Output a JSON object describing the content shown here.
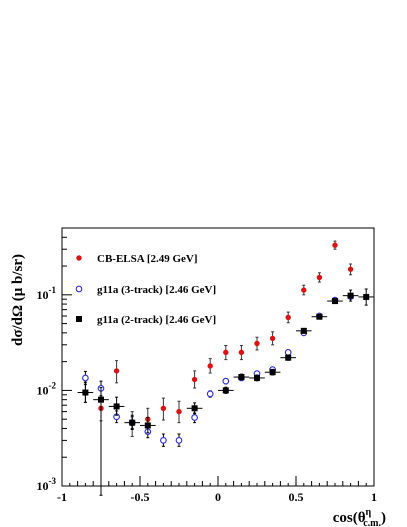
{
  "chart_data": {
    "type": "scatter",
    "title": "",
    "xlabel": "cos(θ",
    "xlabel_sup": "η",
    "xlabel_sub": "c.m.",
    "xlabel_close": ")",
    "ylabel": "dσ/dΩ (μ b/sr)",
    "xlim": [
      -1,
      1
    ],
    "ylim": [
      0.001,
      0.5
    ],
    "yscale": "log",
    "grid": false,
    "legend_position": "top-left",
    "x_ticks": [
      {
        "value": -1,
        "label": "-1"
      },
      {
        "value": -0.5,
        "label": "-0.5"
      },
      {
        "value": 0,
        "label": "0"
      },
      {
        "value": 0.5,
        "label": "0.5"
      },
      {
        "value": 1,
        "label": "1"
      }
    ],
    "y_ticks": [
      {
        "value": 0.001,
        "base": "10",
        "exp": "-3"
      },
      {
        "value": 0.01,
        "base": "10",
        "exp": "-2"
      },
      {
        "value": 0.1,
        "base": "10",
        "exp": "-1"
      }
    ],
    "series": [
      {
        "name": "CB-ELSA [2.49 GeV]",
        "marker": "filled-circle",
        "color": "#dd1111",
        "x_err": 0,
        "points": [
          {
            "x": -0.85,
            "y": 0.0095,
            "yerr": [
              0.0075,
              0.012
            ]
          },
          {
            "x": -0.75,
            "y": 0.0065,
            "yerr": [
              0.0048,
              0.0085
            ]
          },
          {
            "x": -0.65,
            "y": 0.016,
            "yerr": [
              0.012,
              0.0205
            ]
          },
          {
            "x": -0.55,
            "y": 0.0045,
            "yerr": [
              0.0033,
              0.006
            ]
          },
          {
            "x": -0.45,
            "y": 0.005,
            "yerr": [
              0.0037,
              0.0065
            ]
          },
          {
            "x": -0.35,
            "y": 0.0065,
            "yerr": [
              0.0049,
              0.0083
            ]
          },
          {
            "x": -0.25,
            "y": 0.006,
            "yerr": [
              0.0046,
              0.0077
            ]
          },
          {
            "x": -0.15,
            "y": 0.013,
            "yerr": [
              0.0106,
              0.016
            ]
          },
          {
            "x": -0.05,
            "y": 0.018,
            "yerr": [
              0.0152,
              0.0215
            ]
          },
          {
            "x": 0.05,
            "y": 0.025,
            "yerr": [
              0.021,
              0.0295
            ]
          },
          {
            "x": 0.15,
            "y": 0.025,
            "yerr": [
              0.021,
              0.0295
            ]
          },
          {
            "x": 0.25,
            "y": 0.031,
            "yerr": [
              0.0265,
              0.036
            ]
          },
          {
            "x": 0.35,
            "y": 0.035,
            "yerr": [
              0.03,
              0.041
            ]
          },
          {
            "x": 0.45,
            "y": 0.058,
            "yerr": [
              0.051,
              0.066
            ]
          },
          {
            "x": 0.55,
            "y": 0.112,
            "yerr": [
              0.1,
              0.126
            ]
          },
          {
            "x": 0.65,
            "y": 0.152,
            "yerr": [
              0.136,
              0.17
            ]
          },
          {
            "x": 0.75,
            "y": 0.33,
            "yerr": [
              0.3,
              0.365
            ]
          },
          {
            "x": 0.85,
            "y": 0.185,
            "yerr": [
              0.162,
              0.21
            ]
          }
        ]
      },
      {
        "name": "g11a (3-track) [2.46 GeV]",
        "marker": "open-circle",
        "color": "#2a2adf",
        "x_err": 0,
        "points": [
          {
            "x": -0.85,
            "y": 0.0135,
            "yerr": [
              0.0115,
              0.0158
            ]
          },
          {
            "x": -0.75,
            "y": 0.0105,
            "yerr": [
              0.0088,
              0.0125
            ]
          },
          {
            "x": -0.65,
            "y": 0.0053,
            "yerr": [
              0.0046,
              0.0061
            ]
          },
          {
            "x": -0.55,
            "y": 0.0046,
            "yerr": [
              0.004,
              0.0053
            ]
          },
          {
            "x": -0.45,
            "y": 0.0037,
            "yerr": [
              0.0032,
              0.0043
            ]
          },
          {
            "x": -0.35,
            "y": 0.003,
            "yerr": [
              0.0026,
              0.0035
            ]
          },
          {
            "x": -0.25,
            "y": 0.003,
            "yerr": [
              0.0026,
              0.0035
            ]
          },
          {
            "x": -0.15,
            "y": 0.0052,
            "yerr": [
              0.0046,
              0.0058
            ]
          },
          {
            "x": -0.05,
            "y": 0.0092,
            "yerr": [
              0.0085,
              0.0099
            ]
          },
          {
            "x": 0.05,
            "y": 0.0125,
            "yerr": [
              0.0117,
              0.0133
            ]
          },
          {
            "x": 0.15,
            "y": 0.0135,
            "yerr": [
              0.0127,
              0.0143
            ]
          },
          {
            "x": 0.25,
            "y": 0.015,
            "yerr": [
              0.0141,
              0.0159
            ]
          },
          {
            "x": 0.35,
            "y": 0.0165,
            "yerr": [
              0.0156,
              0.0175
            ]
          },
          {
            "x": 0.45,
            "y": 0.025,
            "yerr": [
              0.0237,
              0.0263
            ]
          },
          {
            "x": 0.55,
            "y": 0.04,
            "yerr": [
              0.038,
              0.042
            ]
          },
          {
            "x": 0.65,
            "y": 0.06,
            "yerr": [
              0.057,
              0.063
            ]
          },
          {
            "x": 0.75,
            "y": 0.088,
            "yerr": [
              0.084,
              0.092
            ]
          },
          {
            "x": 0.85,
            "y": 0.096,
            "yerr": [
              0.091,
              0.101
            ]
          }
        ]
      },
      {
        "name": "g11a (2-track) [2.46 GeV]",
        "marker": "filled-square",
        "color": "#000000",
        "x_err": 0.05,
        "points": [
          {
            "x": -0.85,
            "y": 0.0095,
            "yerr": [
              0.0075,
              0.0122
            ]
          },
          {
            "x": -0.75,
            "y": 0.008,
            "yerr": [
              0.0008,
              0.0107
            ]
          },
          {
            "x": -0.65,
            "y": 0.0068,
            "yerr": [
              0.0055,
              0.0085
            ]
          },
          {
            "x": -0.55,
            "y": 0.0046,
            "yerr": [
              0.0039,
              0.0055
            ]
          },
          {
            "x": -0.45,
            "y": 0.0043,
            "yerr": [
              0.0036,
              0.0052
            ]
          },
          {
            "x": -0.15,
            "y": 0.0065,
            "yerr": [
              0.0057,
              0.0074
            ]
          },
          {
            "x": 0.05,
            "y": 0.01,
            "yerr": [
              0.0093,
              0.0108
            ]
          },
          {
            "x": 0.15,
            "y": 0.0138,
            "yerr": [
              0.0129,
              0.0148
            ]
          },
          {
            "x": 0.25,
            "y": 0.0135,
            "yerr": [
              0.0126,
              0.0145
            ]
          },
          {
            "x": 0.35,
            "y": 0.0155,
            "yerr": [
              0.0145,
              0.0166
            ]
          },
          {
            "x": 0.45,
            "y": 0.022,
            "yerr": [
              0.0207,
              0.0234
            ]
          },
          {
            "x": 0.55,
            "y": 0.042,
            "yerr": [
              0.0397,
              0.0444
            ]
          },
          {
            "x": 0.65,
            "y": 0.059,
            "yerr": [
              0.056,
              0.062
            ]
          },
          {
            "x": 0.75,
            "y": 0.086,
            "yerr": [
              0.082,
              0.09
            ]
          },
          {
            "x": 0.85,
            "y": 0.098,
            "yerr": [
              0.086,
              0.112
            ]
          },
          {
            "x": 0.95,
            "y": 0.095,
            "yerr": [
              0.078,
              0.115
            ]
          }
        ]
      }
    ]
  }
}
